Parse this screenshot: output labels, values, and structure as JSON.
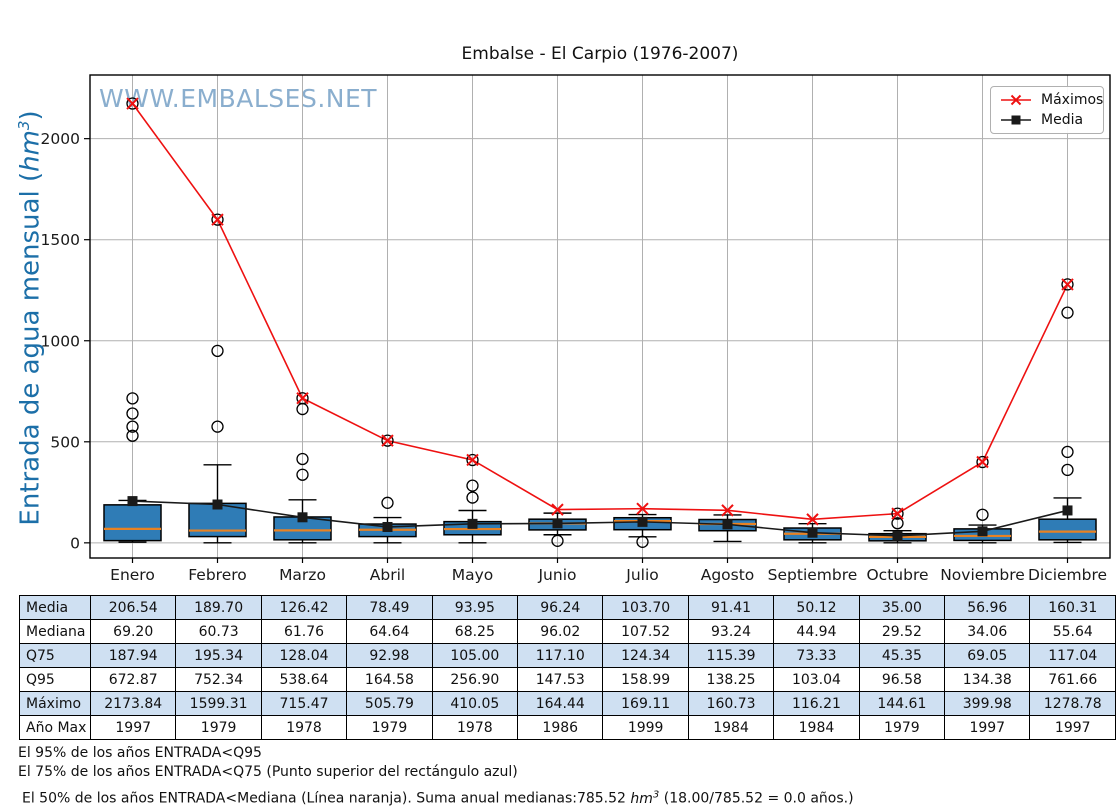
{
  "title": "Embalse - El Carpio (1976-2007)",
  "watermark": "WWW.EMBALSES.NET",
  "ylabel": {
    "pre": "Entrada de agua mensual (",
    "unit": "hm",
    "sup": "3",
    "post": ")"
  },
  "colors": {
    "box_fill": "#2f7cb6",
    "median_line": "#e88223",
    "maximos_line": "#ee1111",
    "media_line": "#1a1a1a",
    "grid": "#b0b0b0",
    "frame": "#000000",
    "tick_text": "#1a1a1a",
    "watermark": "#6e9bc3",
    "ylabel": "#1c6fa8",
    "table_band": "#cfe0f2",
    "legend_border": "#b0b0b0"
  },
  "chart_data": {
    "type": "box",
    "title": "Embalse - El Carpio (1976-2007)",
    "xlabel": "",
    "ylabel": "Entrada de agua mensual (hm3)",
    "categories": [
      "Enero",
      "Febrero",
      "Marzo",
      "Abril",
      "Mayo",
      "Junio",
      "Julio",
      "Agosto",
      "Septiembre",
      "Octubre",
      "Noviembre",
      "Diciembre"
    ],
    "ylim": [
      -75,
      2315
    ],
    "yticks": [
      0,
      500,
      1000,
      1500,
      2000
    ],
    "grid": true,
    "legend_position": "top-right",
    "box": {
      "q25": [
        11,
        31,
        15,
        31,
        40,
        64,
        65,
        60,
        15,
        10,
        12,
        15
      ],
      "median": [
        69.2,
        60.73,
        61.76,
        64.64,
        68.25,
        96.02,
        107.52,
        93.24,
        44.94,
        29.52,
        34.06,
        55.64
      ],
      "q75": [
        187.94,
        195.34,
        128.04,
        92.98,
        105.0,
        117.1,
        124.34,
        115.39,
        73.33,
        45.35,
        69.05,
        117.04
      ],
      "whisker_low": [
        3,
        0,
        0,
        0,
        0,
        40,
        30,
        7,
        0,
        0,
        0,
        2
      ],
      "whisker_high": [
        210,
        386,
        213,
        125,
        160,
        147,
        140,
        138,
        95,
        60,
        88,
        222
      ],
      "outliers": [
        [
          530,
          575,
          640,
          715
        ],
        [
          575,
          950
        ],
        [
          337,
          415,
          662
        ],
        [
          198
        ],
        [
          224,
          283
        ],
        [
          10
        ],
        [
          5
        ],
        [],
        [],
        [
          97
        ],
        [
          139
        ],
        [
          361,
          450,
          1139
        ]
      ],
      "max_flagged_as_outlier": [
        true,
        true,
        true,
        true,
        true,
        false,
        false,
        false,
        false,
        true,
        true,
        true
      ]
    },
    "series": [
      {
        "name": "Máximos",
        "type": "line",
        "marker": "x",
        "color": "#ee1111",
        "values": [
          2173.84,
          1599.31,
          715.47,
          505.79,
          410.05,
          164.44,
          169.11,
          160.73,
          116.21,
          144.61,
          399.98,
          1278.78
        ]
      },
      {
        "name": "Media",
        "type": "line",
        "marker": "square",
        "color": "#1a1a1a",
        "values": [
          206.54,
          189.7,
          126.42,
          78.49,
          93.95,
          96.24,
          103.7,
          91.41,
          50.12,
          35.0,
          56.96,
          160.31
        ]
      }
    ]
  },
  "table": {
    "columns": [
      "Enero",
      "Febrero",
      "Marzo",
      "Abril",
      "Mayo",
      "Junio",
      "Julio",
      "Agosto",
      "Septiembre",
      "Octubre",
      "Noviembre",
      "Diciembre"
    ],
    "rows": [
      {
        "label": "Media",
        "values": [
          "206.54",
          "189.70",
          "126.42",
          "78.49",
          "93.95",
          "96.24",
          "103.70",
          "91.41",
          "50.12",
          "35.00",
          "56.96",
          "160.31"
        ]
      },
      {
        "label": "Mediana",
        "values": [
          "69.20",
          "60.73",
          "61.76",
          "64.64",
          "68.25",
          "96.02",
          "107.52",
          "93.24",
          "44.94",
          "29.52",
          "34.06",
          "55.64"
        ]
      },
      {
        "label": "Q75",
        "values": [
          "187.94",
          "195.34",
          "128.04",
          "92.98",
          "105.00",
          "117.10",
          "124.34",
          "115.39",
          "73.33",
          "45.35",
          "69.05",
          "117.04"
        ]
      },
      {
        "label": "Q95",
        "values": [
          "672.87",
          "752.34",
          "538.64",
          "164.58",
          "256.90",
          "147.53",
          "158.99",
          "138.25",
          "103.04",
          "96.58",
          "134.38",
          "761.66"
        ]
      },
      {
        "label": "Máximo",
        "values": [
          "2173.84",
          "1599.31",
          "715.47",
          "505.79",
          "410.05",
          "164.44",
          "169.11",
          "160.73",
          "116.21",
          "144.61",
          "399.98",
          "1278.78"
        ]
      },
      {
        "label": "Año Max",
        "values": [
          "1997",
          "1979",
          "1978",
          "1979",
          "1978",
          "1986",
          "1999",
          "1984",
          "1984",
          "1979",
          "1997",
          "1997"
        ]
      }
    ]
  },
  "footnotes": {
    "line1": "El 95% de los años ENTRADA<Q95",
    "line2": "El 75% de los años ENTRADA<Q75 (Punto superior del rectángulo azul)",
    "line3_pre": "El 50% de los años ENTRADA<Mediana (Línea naranja). Suma anual medianas:785.52 ",
    "line3_unit": "hm",
    "line3_sup": "3",
    "line3_post": " (18.00/785.52 = 0.0 años.)"
  }
}
